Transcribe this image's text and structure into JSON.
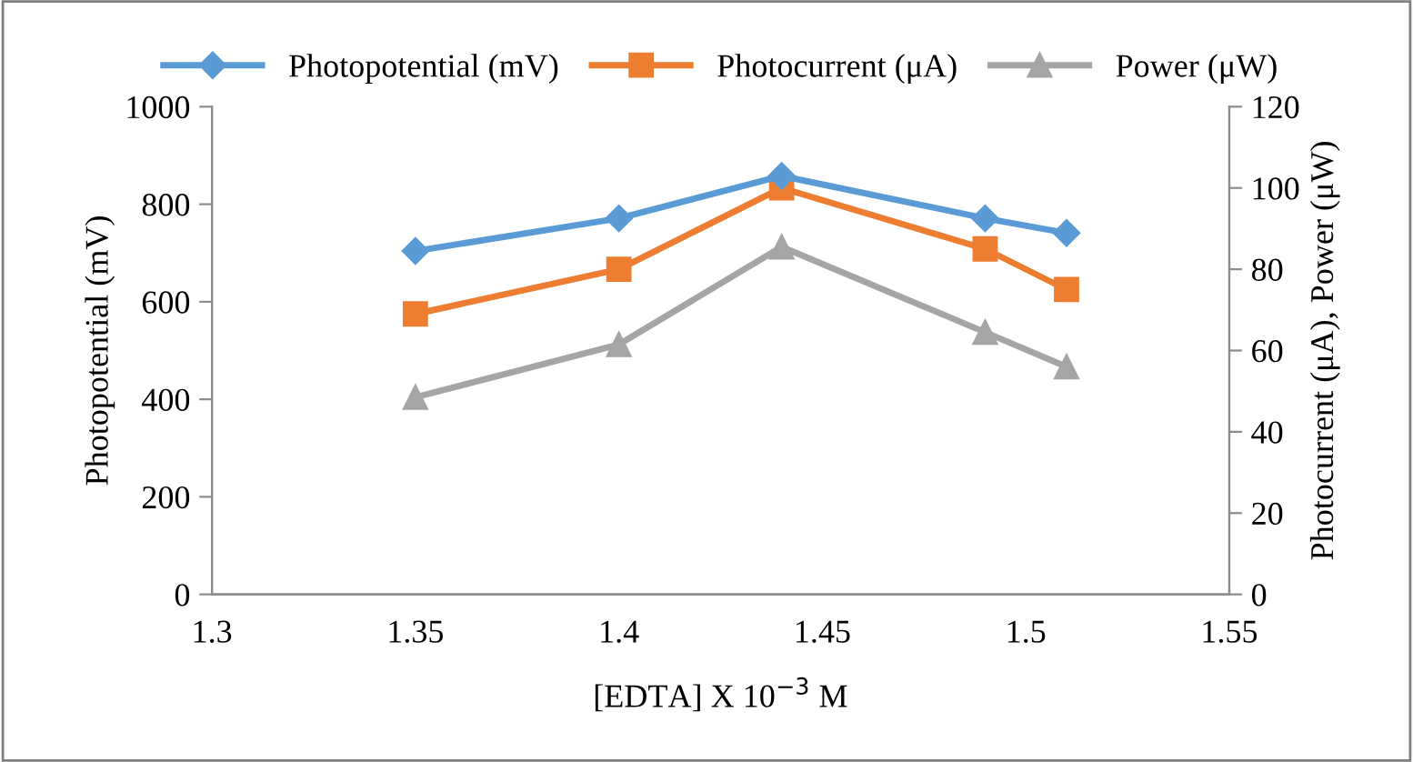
{
  "chart_data": {
    "type": "line",
    "xlabel": "[EDTA] X 10$^{−3}$ M",
    "ylabel": "Photopotential (mV)",
    "y2label": "Photocurrent (μA), Power (μW)",
    "x": [
      1.35,
      1.4,
      1.44,
      1.49,
      1.51
    ],
    "series": [
      {
        "name": "Photopotential (mV)",
        "color": "#5b9bd5",
        "marker": "diamond",
        "values": [
          704,
          771,
          858,
          771,
          741
        ]
      },
      {
        "name": "Photocurrent (μA)",
        "color": "#ed7d31",
        "marker": "square",
        "axis": "y2",
        "values": [
          69,
          80,
          100,
          85,
          75
        ]
      },
      {
        "name": "Power (μW)",
        "color": "#a5a5a5",
        "marker": "triangle",
        "axis": "y2",
        "values": [
          48.5,
          61.5,
          85.5,
          64.5,
          56
        ]
      }
    ],
    "xlim": [
      1.3,
      1.55
    ],
    "xticks": [
      1.3,
      1.35,
      1.4,
      1.45,
      1.5,
      1.55
    ],
    "ylim": [
      0,
      1000
    ],
    "yticks": [
      0,
      200,
      400,
      600,
      800,
      1000
    ],
    "y2lim": [
      0,
      120
    ],
    "y2ticks": [
      0,
      20,
      40,
      60,
      80,
      100,
      120
    ],
    "grid": false,
    "legend": "top",
    "line_style": "solid"
  }
}
